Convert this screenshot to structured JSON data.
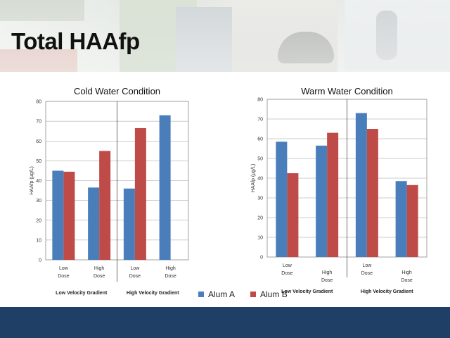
{
  "slide": {
    "title": "Total HAAfp"
  },
  "colors": {
    "alum_a": "#4a7ebb",
    "alum_b": "#be4b48",
    "footer": "#1f3f66"
  },
  "legend": [
    {
      "name": "Alum A",
      "color": "#4a7ebb"
    },
    {
      "name": "Alum B",
      "color": "#be4b48"
    }
  ],
  "chart_data": [
    {
      "type": "bar",
      "title": "Cold Water Condition",
      "ylabel": "HAAfp (µg/L)",
      "ylim": [
        0,
        80
      ],
      "yticks": [
        0,
        10,
        20,
        30,
        40,
        50,
        60,
        70,
        80
      ],
      "categories": [
        "Low Dose",
        "High Dose",
        "Low Dose",
        "High Dose"
      ],
      "groups": [
        "Low Velocity Gradient",
        "High  Velocity Gradient"
      ],
      "series": [
        {
          "name": "Alum A",
          "values": [
            45,
            36.5,
            36,
            73
          ]
        },
        {
          "name": "Alum B",
          "values": [
            44.5,
            55,
            66.5,
            null
          ]
        }
      ]
    },
    {
      "type": "bar",
      "title": "Warm Water Condition",
      "ylabel": "HAAfp (µg/L)",
      "ylim": [
        0,
        80
      ],
      "yticks": [
        0,
        10,
        20,
        30,
        40,
        50,
        60,
        70,
        80
      ],
      "categories": [
        "Low Dose",
        "High Dose",
        "Low Dose",
        "High Dose"
      ],
      "groups": [
        "Low Velocity Gradient",
        "High  Velocity Gradient"
      ],
      "series": [
        {
          "name": "Alum A",
          "values": [
            58.5,
            56.5,
            73,
            38.5
          ]
        },
        {
          "name": "Alum B",
          "values": [
            42.5,
            63,
            65,
            36.5
          ]
        }
      ]
    }
  ]
}
